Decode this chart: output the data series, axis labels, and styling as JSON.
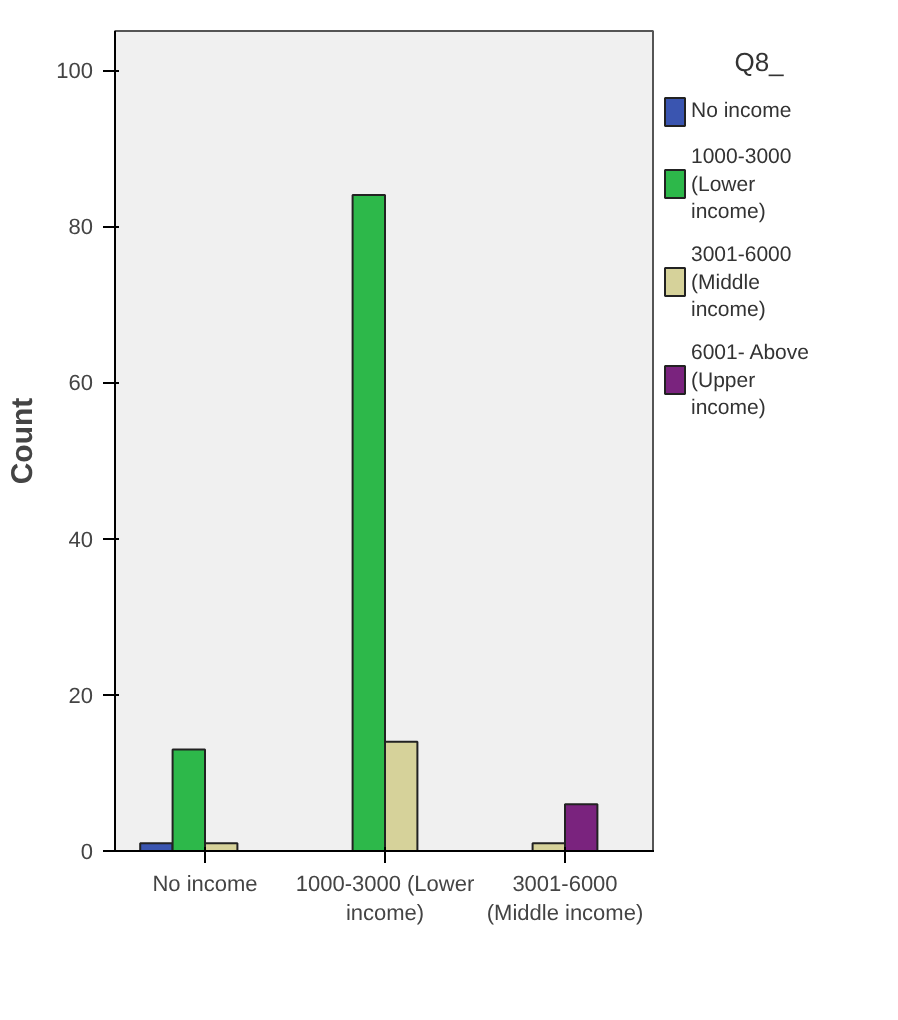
{
  "chart_data": {
    "type": "bar",
    "ylabel": "Count",
    "legend_title": "Q8_",
    "categories": [
      "No income",
      "1000-3000 (Lower income)",
      "3001-6000 (Middle income)"
    ],
    "series": [
      {
        "name": "No income",
        "color": "#3a55b0",
        "values": [
          1,
          null,
          null
        ]
      },
      {
        "name": "1000-3000 (Lower income)",
        "color": "#2db84a",
        "values": [
          13,
          84,
          null
        ]
      },
      {
        "name": "3001-6000 (Middle income)",
        "color": "#d6d29a",
        "values": [
          1,
          14,
          1
        ]
      },
      {
        "name": "6001- Above (Upper income)",
        "color": "#7a237e",
        "values": [
          0,
          null,
          6
        ]
      }
    ],
    "ylim": [
      0,
      105
    ],
    "yticks": [
      0,
      20,
      40,
      60,
      80,
      100
    ],
    "grid": false,
    "legend": "right"
  }
}
